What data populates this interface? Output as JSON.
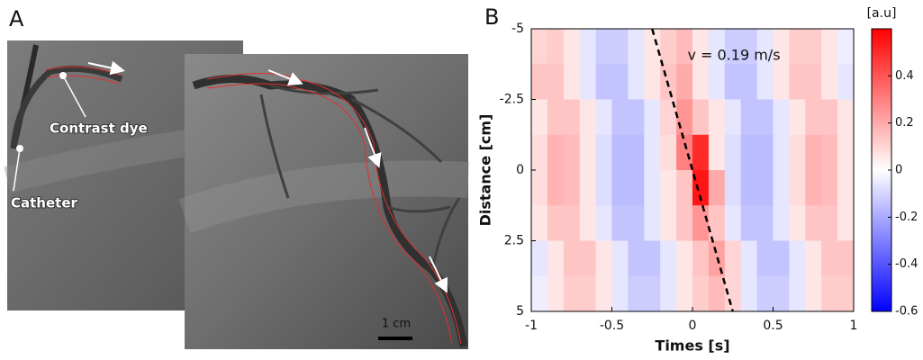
{
  "panel_a": {
    "label": "A",
    "annotations": [
      "Contrast dye",
      "Catheter"
    ],
    "scale_bar": "1 cm"
  },
  "chart_data": {
    "type": "heatmap",
    "label": "B",
    "xlabel": "Times [s]",
    "ylabel": "Distance [cm]",
    "annotation": "v = 0.19 m/s",
    "x": [
      -0.95,
      -0.85,
      -0.75,
      -0.65,
      -0.55,
      -0.45,
      -0.35,
      -0.25,
      -0.15,
      -0.05,
      0.05,
      0.15,
      0.25,
      0.35,
      0.45,
      0.55,
      0.65,
      0.75,
      0.85,
      0.95
    ],
    "y": [
      -4.375,
      -3.125,
      -1.875,
      -0.625,
      0.625,
      1.875,
      3.125,
      4.375
    ],
    "z": [
      [
        0.1,
        0.12,
        0.06,
        -0.06,
        -0.12,
        -0.12,
        -0.06,
        0.06,
        0.12,
        0.16,
        0.06,
        -0.06,
        -0.12,
        -0.12,
        -0.06,
        0.06,
        0.12,
        0.12,
        0.06,
        -0.04
      ],
      [
        0.14,
        0.14,
        0.06,
        -0.06,
        -0.14,
        -0.14,
        -0.06,
        0.06,
        0.14,
        0.2,
        0.06,
        -0.06,
        -0.14,
        -0.14,
        -0.06,
        0.06,
        0.14,
        0.14,
        0.06,
        -0.06
      ],
      [
        0.06,
        0.14,
        0.14,
        0.06,
        -0.06,
        -0.14,
        -0.14,
        -0.06,
        0.1,
        0.25,
        0.14,
        0.06,
        -0.06,
        -0.14,
        -0.14,
        -0.06,
        0.06,
        0.14,
        0.14,
        0.06
      ],
      [
        0.08,
        0.18,
        0.16,
        0.06,
        -0.08,
        -0.16,
        -0.16,
        -0.06,
        0.08,
        0.3,
        0.5,
        0.06,
        -0.08,
        -0.16,
        -0.16,
        -0.06,
        0.08,
        0.18,
        0.16,
        0.06
      ],
      [
        0.08,
        0.18,
        0.16,
        0.06,
        -0.08,
        -0.16,
        -0.16,
        -0.06,
        0.06,
        0.14,
        0.55,
        0.2,
        -0.08,
        -0.16,
        -0.16,
        -0.06,
        0.08,
        0.18,
        0.16,
        0.06
      ],
      [
        0.06,
        0.14,
        0.14,
        0.06,
        -0.06,
        -0.14,
        -0.14,
        -0.06,
        0.06,
        0.14,
        0.25,
        0.14,
        -0.06,
        -0.14,
        -0.14,
        -0.06,
        0.06,
        0.14,
        0.14,
        0.06
      ],
      [
        -0.06,
        0.06,
        0.14,
        0.14,
        0.06,
        -0.06,
        -0.14,
        -0.14,
        -0.06,
        0.06,
        0.14,
        0.22,
        0.1,
        -0.06,
        -0.14,
        -0.14,
        -0.06,
        0.06,
        0.14,
        0.14
      ],
      [
        -0.04,
        0.06,
        0.12,
        0.12,
        0.06,
        -0.06,
        -0.12,
        -0.12,
        -0.06,
        0.06,
        0.12,
        0.16,
        0.1,
        -0.06,
        -0.12,
        -0.12,
        -0.06,
        0.06,
        0.12,
        0.12
      ]
    ],
    "xlim": [
      -1,
      1
    ],
    "xticks": [
      -1,
      -0.5,
      0,
      0.5,
      1
    ],
    "ylim": [
      -5,
      5
    ],
    "yticks": [
      -5,
      -2.5,
      0,
      2.5,
      5
    ],
    "colorbar_title": "[a.u]",
    "clim": [
      -0.6,
      0.6
    ],
    "cticks": [
      -0.6,
      -0.4,
      -0.2,
      0,
      0.2,
      0.4
    ],
    "colors": [
      "#0000ff",
      "#ffffff",
      "#ff0000"
    ],
    "fit_line": {
      "x": [
        -0.25,
        0.25
      ],
      "y": [
        -5,
        5
      ],
      "color": "#000000"
    }
  }
}
